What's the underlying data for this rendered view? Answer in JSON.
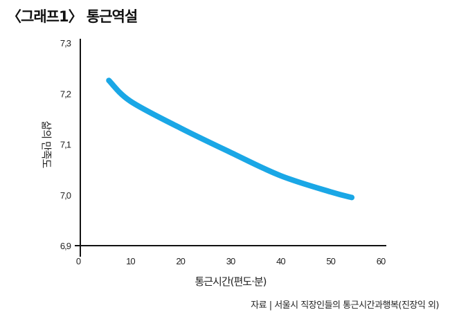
{
  "chart_data": {
    "type": "line",
    "title": "〈그래프1〉 통근역설",
    "xlabel": "통근시간(편도·분)",
    "ylabel": "삶의 만족도",
    "xlim": [
      0,
      60
    ],
    "ylim": [
      6.9,
      7.3
    ],
    "xticks": [
      "0",
      "10",
      "20",
      "30",
      "40",
      "50",
      "60"
    ],
    "yticks": [
      "6.9",
      "7.0",
      "7.1",
      "7.2",
      "7.3"
    ],
    "grid": false,
    "series": [
      {
        "name": "삶의 만족도",
        "color": "#1aa7e6",
        "x": [
          5.7,
          10,
          20,
          30,
          40,
          50,
          54.2
        ],
        "y": [
          7.226,
          7.185,
          7.132,
          7.084,
          7.038,
          7.006,
          6.995
        ]
      }
    ],
    "source": "자료 | 서울시 직장인들의 통근시간과행복(진장익 외)"
  }
}
